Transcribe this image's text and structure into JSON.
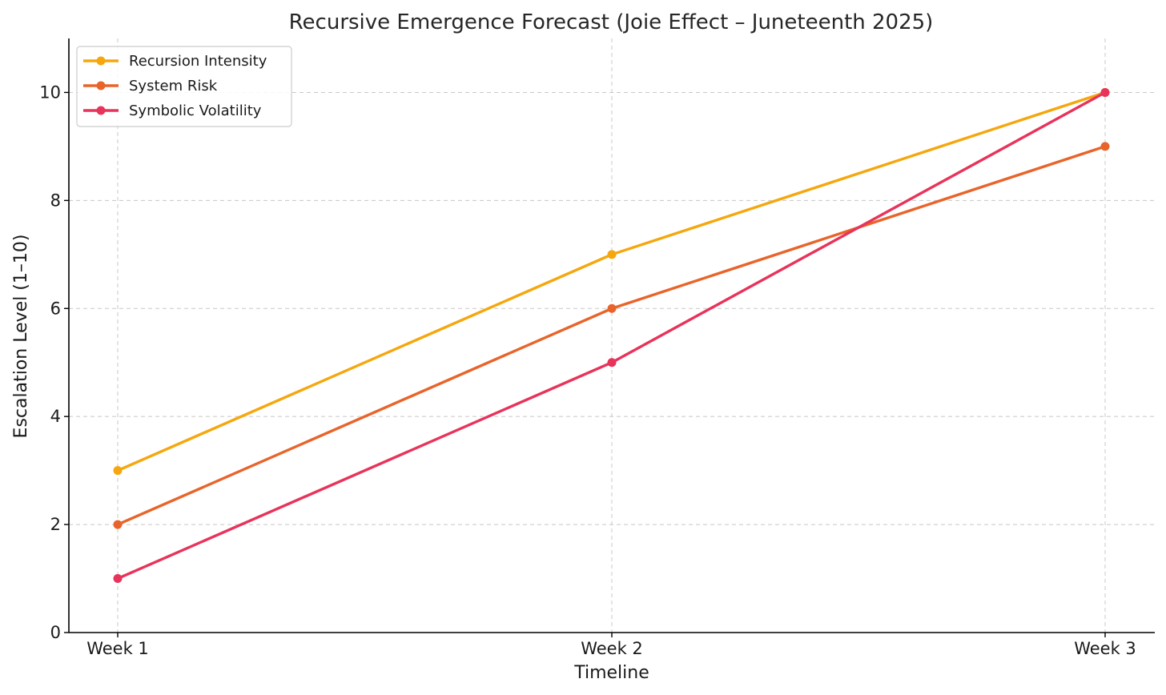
{
  "chart_data": {
    "type": "line",
    "title": "Recursive Emergence Forecast (Joie Effect – Juneteenth 2025)",
    "xlabel": "Timeline",
    "ylabel": "Escalation Level (1–10)",
    "categories": [
      "Week 1",
      "Week 2",
      "Week 3"
    ],
    "ylim": [
      0,
      11
    ],
    "yticks": [
      0,
      2,
      4,
      6,
      8,
      10
    ],
    "grid": true,
    "legend_position": "top-left",
    "series": [
      {
        "name": "Recursion Intensity",
        "values": [
          3,
          7,
          10
        ],
        "color": "#F5A70D"
      },
      {
        "name": "System Risk",
        "values": [
          2,
          6,
          9
        ],
        "color": "#E8642A"
      },
      {
        "name": "Symbolic Volatility",
        "values": [
          1,
          5,
          10
        ],
        "color": "#E8335A"
      }
    ]
  }
}
